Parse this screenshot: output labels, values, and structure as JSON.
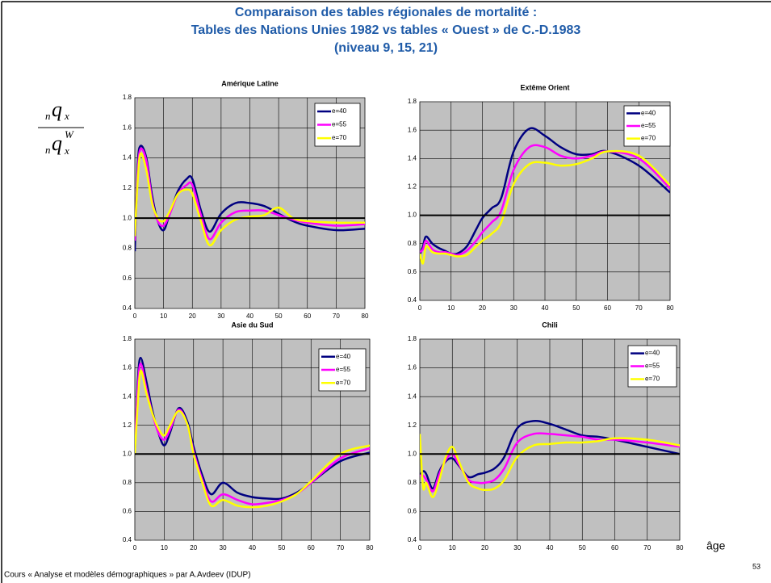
{
  "slide_title": [
    "Comparaison des tables régionales de mortalité :",
    "Tables des Nations Unies 1982 vs tables « Ouest » de C.-D.1983",
    "(niveau 9, 15, 21)"
  ],
  "formula": {
    "numerator": {
      "pre": "n",
      "main": "q",
      "sub": "x"
    },
    "denominator": {
      "pre": "n",
      "main": "q",
      "sub": "x",
      "sup": "W"
    }
  },
  "axis_note": "âge",
  "footer": "Cours « Analyse et modèles démographiques » par A.Avdeev (IDUP)",
  "page_number": "53",
  "chart_data": [
    {
      "type": "line",
      "title": "Amérique Latine",
      "legend": "upper right",
      "grid": true,
      "reference_line": 1,
      "xlim": [
        0,
        80
      ],
      "xticks": [
        0,
        10,
        20,
        30,
        40,
        50,
        60,
        70,
        80
      ],
      "ylim": [
        0.4,
        1.8
      ],
      "yticks": [
        0.4,
        0.6,
        0.8,
        {
          "value": 1,
          "label": "1.0"
        },
        1.2,
        1.4,
        1.6,
        1.8
      ],
      "x": [
        0,
        1,
        2,
        4,
        6,
        8,
        10,
        12,
        15,
        18,
        20,
        23,
        26,
        30,
        35,
        40,
        45,
        50,
        55,
        60,
        70,
        80
      ],
      "series": [
        {
          "name": "e=40",
          "color": "#000080",
          "values": [
            0.78,
            1.35,
            1.48,
            1.4,
            1.15,
            0.98,
            0.92,
            1.02,
            1.18,
            1.26,
            1.26,
            1.05,
            0.91,
            1.03,
            1.1,
            1.1,
            1.08,
            1.03,
            0.98,
            0.95,
            0.92,
            0.93
          ]
        },
        {
          "name": "e=55",
          "color": "#ff00ff",
          "values": [
            0.85,
            1.3,
            1.46,
            1.38,
            1.12,
            0.98,
            0.95,
            1.02,
            1.16,
            1.22,
            1.22,
            1.02,
            0.86,
            0.97,
            1.04,
            1.05,
            1.05,
            1.02,
            0.99,
            0.97,
            0.95,
            0.96
          ]
        },
        {
          "name": "e=70",
          "color": "#ffff00",
          "values": [
            0.88,
            1.25,
            1.43,
            1.32,
            1.1,
            1.0,
            0.98,
            1.04,
            1.16,
            1.19,
            1.16,
            0.98,
            0.82,
            0.92,
            0.99,
            1.01,
            1.02,
            1.07,
            1.0,
            0.98,
            0.97,
            0.97
          ]
        }
      ]
    },
    {
      "type": "line",
      "title": "Extême Orient",
      "legend": "upper right",
      "grid": true,
      "reference_line": 1,
      "xlim": [
        0,
        80
      ],
      "xticks": [
        0,
        10,
        20,
        30,
        40,
        50,
        60,
        70,
        80
      ],
      "ylim": [
        0.4,
        1.8
      ],
      "yticks": [
        0.4,
        0.6,
        0.8,
        {
          "value": 1,
          "label": "1.0"
        },
        1.2,
        1.4,
        1.6,
        1.8
      ],
      "x": [
        0,
        1,
        2,
        4,
        6,
        8,
        10,
        12,
        15,
        18,
        20,
        23,
        26,
        30,
        35,
        40,
        45,
        50,
        55,
        60,
        70,
        80
      ],
      "series": [
        {
          "name": "e=40",
          "color": "#000080",
          "values": [
            0.72,
            0.78,
            0.85,
            0.8,
            0.77,
            0.75,
            0.73,
            0.73,
            0.78,
            0.9,
            0.98,
            1.05,
            1.12,
            1.45,
            1.61,
            1.56,
            1.48,
            1.43,
            1.43,
            1.45,
            1.35,
            1.16
          ]
        },
        {
          "name": "e=55",
          "color": "#ff00ff",
          "values": [
            0.74,
            0.76,
            0.82,
            0.76,
            0.74,
            0.74,
            0.73,
            0.72,
            0.75,
            0.82,
            0.88,
            0.95,
            1.03,
            1.32,
            1.48,
            1.48,
            1.42,
            1.4,
            1.42,
            1.45,
            1.4,
            1.19
          ]
        },
        {
          "name": "e=70",
          "color": "#ffff00",
          "values": [
            0.73,
            0.66,
            0.78,
            0.74,
            0.73,
            0.73,
            0.72,
            0.71,
            0.72,
            0.78,
            0.82,
            0.87,
            0.95,
            1.22,
            1.36,
            1.37,
            1.35,
            1.36,
            1.4,
            1.45,
            1.42,
            1.21
          ]
        }
      ]
    },
    {
      "type": "line",
      "title": "Asie du Sud",
      "legend": "upper right",
      "grid": true,
      "reference_line": 1,
      "xlim": [
        0,
        80
      ],
      "xticks": [
        0,
        10,
        20,
        30,
        40,
        50,
        60,
        70,
        80
      ],
      "ylim": [
        0.4,
        1.8
      ],
      "yticks": [
        0.4,
        0.6,
        0.8,
        {
          "value": 1,
          "label": "1.0"
        },
        1.2,
        1.4,
        1.6,
        1.8
      ],
      "x": [
        0,
        1,
        2,
        4,
        6,
        8,
        10,
        12,
        15,
        18,
        20,
        23,
        26,
        30,
        35,
        40,
        45,
        50,
        55,
        60,
        70,
        80
      ],
      "series": [
        {
          "name": "e=40",
          "color": "#000080",
          "values": [
            1.0,
            1.5,
            1.67,
            1.5,
            1.3,
            1.15,
            1.06,
            1.15,
            1.32,
            1.22,
            1.05,
            0.85,
            0.72,
            0.8,
            0.73,
            0.7,
            0.69,
            0.69,
            0.73,
            0.8,
            0.95,
            1.01
          ]
        },
        {
          "name": "e=55",
          "color": "#ff00ff",
          "values": [
            1.05,
            1.45,
            1.63,
            1.45,
            1.28,
            1.15,
            1.1,
            1.17,
            1.31,
            1.2,
            1.02,
            0.82,
            0.67,
            0.72,
            0.68,
            0.65,
            0.66,
            0.68,
            0.72,
            0.8,
            0.97,
            1.04
          ]
        },
        {
          "name": "e=70",
          "color": "#ffff00",
          "values": [
            1.0,
            1.35,
            1.58,
            1.42,
            1.28,
            1.18,
            1.13,
            1.2,
            1.3,
            1.2,
            1.0,
            0.8,
            0.64,
            0.68,
            0.64,
            0.63,
            0.64,
            0.67,
            0.72,
            0.81,
            1.0,
            1.06
          ]
        }
      ]
    },
    {
      "type": "line",
      "title": "Chili",
      "legend": "upper right",
      "grid": true,
      "reference_line": 1,
      "xlim": [
        0,
        80
      ],
      "xticks": [
        0,
        10,
        20,
        30,
        40,
        50,
        60,
        70,
        80
      ],
      "ylim": [
        0.4,
        1.8
      ],
      "yticks": [
        0.4,
        0.6,
        0.8,
        {
          "value": 1,
          "label": "1.0"
        },
        1.2,
        1.4,
        1.6,
        1.8
      ],
      "x": [
        0,
        1,
        2,
        4,
        6,
        8,
        10,
        12,
        15,
        18,
        20,
        23,
        26,
        30,
        35,
        40,
        45,
        50,
        55,
        60,
        70,
        80
      ],
      "series": [
        {
          "name": "e=40",
          "color": "#000080",
          "values": [
            0.85,
            0.88,
            0.86,
            0.76,
            0.88,
            0.95,
            0.97,
            0.92,
            0.84,
            0.86,
            0.87,
            0.9,
            0.98,
            1.18,
            1.23,
            1.21,
            1.17,
            1.13,
            1.12,
            1.1,
            1.05,
            1.0
          ]
        },
        {
          "name": "e=55",
          "color": "#ff00ff",
          "values": [
            0.85,
            0.85,
            0.82,
            0.74,
            0.86,
            0.96,
            1.0,
            0.93,
            0.82,
            0.8,
            0.8,
            0.82,
            0.9,
            1.08,
            1.14,
            1.14,
            1.13,
            1.12,
            1.1,
            1.1,
            1.08,
            1.05
          ]
        },
        {
          "name": "e=70",
          "color": "#ffff00",
          "values": [
            1.14,
            0.77,
            0.8,
            0.7,
            0.82,
            0.98,
            1.05,
            0.95,
            0.8,
            0.76,
            0.75,
            0.76,
            0.82,
            0.98,
            1.06,
            1.07,
            1.08,
            1.08,
            1.09,
            1.11,
            1.1,
            1.06
          ]
        }
      ]
    }
  ]
}
